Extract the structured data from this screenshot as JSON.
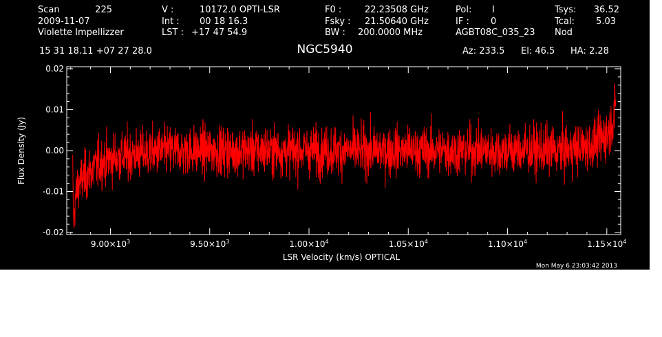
{
  "header": {
    "scan_label": "Scan",
    "scan_value": "225",
    "date": "2009-11-07",
    "observer": "Violette Impellizzer",
    "v_label": "V   :",
    "v_value": "10172.0 OPTI-LSR",
    "int_label": "Int   :",
    "int_value": "00 18 16.3",
    "lst_label": "LST :",
    "lst_value": "+17 47 54.9",
    "f0_label": "F0    :",
    "f0_value": "22.23508 GHz",
    "fsky_label": "Fsky :",
    "fsky_value": "21.50640 GHz",
    "bw_label": "BW    :",
    "bw_value": "200.0000 MHz",
    "pol_label": "Pol:",
    "pol_value": "I",
    "if_label": "IF :",
    "if_value": "0",
    "project": "AGBT08C_035_23",
    "tsys_label": "Tsys:",
    "tsys_value": "36.52",
    "tcal_label": "Tcal:",
    "tcal_value": "5.03",
    "proc": "Nod",
    "coords": "15 31 18.11  +07 27 28.0",
    "source": "NGC5940",
    "az": "Az: 233.5",
    "el": "El:   46.5",
    "ha": "HA:   2.28"
  },
  "footer": {
    "timestamp": "Mon May  6 23:03:42 2013"
  },
  "chart_data": {
    "type": "line",
    "xlabel": "LSR Velocity (km/s) OPTICAL",
    "ylabel": "Flux Density (Jy)",
    "xlim": [
      8780,
      11570
    ],
    "ylim": [
      -0.0205,
      0.0205
    ],
    "x_ticks": [
      {
        "value": 9000,
        "mantissa": "9.00",
        "exponent": "3"
      },
      {
        "value": 9500,
        "mantissa": "9.50",
        "exponent": "3"
      },
      {
        "value": 10000,
        "mantissa": "1.00",
        "exponent": "4"
      },
      {
        "value": 10500,
        "mantissa": "1.05",
        "exponent": "4"
      },
      {
        "value": 11000,
        "mantissa": "1.10",
        "exponent": "4"
      },
      {
        "value": 11500,
        "mantissa": "1.15",
        "exponent": "4"
      }
    ],
    "y_ticks": [
      {
        "value": -0.02,
        "label": "-0.02"
      },
      {
        "value": -0.01,
        "label": "-0.01"
      },
      {
        "value": 0.0,
        "label": "0.00"
      },
      {
        "value": 0.01,
        "label": "0.01"
      },
      {
        "value": 0.02,
        "label": "0.02"
      }
    ],
    "series": [
      {
        "color": "#ff0000",
        "x_start": 8810,
        "x_end": 11545,
        "points": [
          [
            8810,
            -0.005
          ],
          [
            8815,
            -0.019
          ],
          [
            8822,
            -0.012
          ],
          [
            8830,
            -0.01
          ],
          [
            8840,
            -0.008
          ],
          [
            8860,
            -0.007
          ],
          [
            8880,
            -0.006
          ],
          [
            8900,
            -0.005
          ],
          [
            8950,
            -0.003
          ],
          [
            9000,
            -0.002
          ],
          [
            9100,
            -0.001
          ],
          [
            9300,
            0.0
          ],
          [
            9500,
            0.0
          ],
          [
            9700,
            0.0
          ],
          [
            9900,
            0.0
          ],
          [
            10100,
            0.0
          ],
          [
            10300,
            0.0
          ],
          [
            10500,
            0.0
          ],
          [
            10700,
            0.0
          ],
          [
            10900,
            0.0
          ],
          [
            11100,
            0.0
          ],
          [
            11300,
            0.0
          ],
          [
            11400,
            0.001
          ],
          [
            11450,
            0.002
          ],
          [
            11480,
            0.003
          ],
          [
            11500,
            0.004
          ],
          [
            11520,
            0.006
          ],
          [
            11535,
            0.008
          ],
          [
            11545,
            0.011
          ]
        ],
        "noise_rms": 0.003,
        "min": -0.019,
        "max": 0.0165
      }
    ]
  }
}
